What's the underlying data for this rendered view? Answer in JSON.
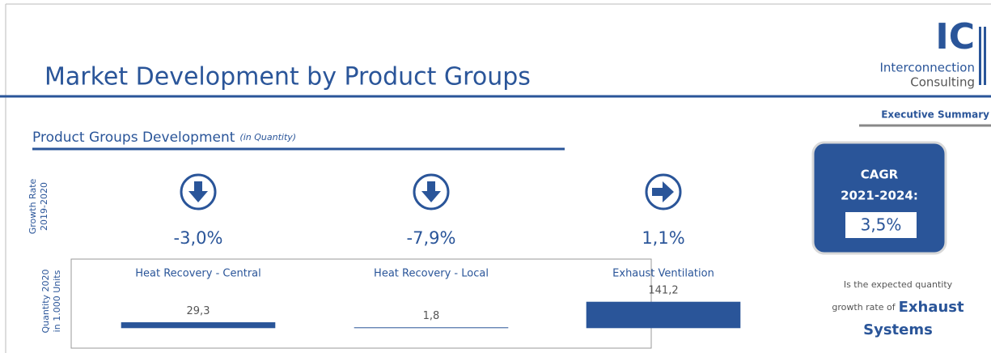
{
  "header": {
    "title": "Market Development by Product Groups",
    "logo": {
      "mark": "IC",
      "line1": "Interconnection",
      "line2": "Consulting"
    },
    "section": "Executive Summary"
  },
  "subtitle": {
    "main": "Product Groups Development",
    "note": "(in Quantity)"
  },
  "row_labels": {
    "growth": [
      "Growth Rate",
      "2019-2020"
    ],
    "quantity": [
      "Quantity 2020",
      "in 1.000 Units"
    ]
  },
  "products": [
    {
      "name": "Heat Recovery - Central",
      "growth": {
        "value": -3.0,
        "label": "-3,0%"
      },
      "quantity": {
        "value": 29.3,
        "label": "29,3"
      }
    },
    {
      "name": "Heat Recovery - Local",
      "growth": {
        "value": -7.9,
        "label": "-7,9%"
      },
      "quantity": {
        "value": 1.8,
        "label": "1,8"
      }
    },
    {
      "name": "Exhaust Ventilation",
      "growth": {
        "value": 1.1,
        "label": "1,1%"
      },
      "quantity": {
        "value": 141.2,
        "label": "141,2"
      }
    }
  ],
  "cagr": {
    "label": "CAGR",
    "period": "2021-2024:",
    "value": "3,5%"
  },
  "description": {
    "line1": "Is the expected quantity",
    "line2": "growth rate of",
    "highlight1": "Exhaust",
    "highlight2": "Systems"
  }
}
